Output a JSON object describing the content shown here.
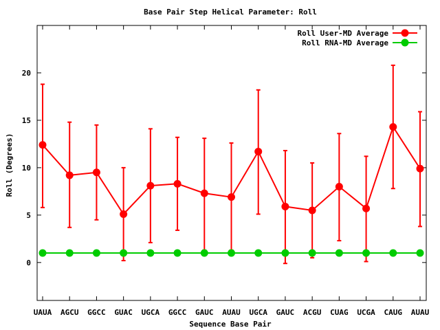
{
  "chart_data": {
    "type": "line",
    "title": "Base Pair Step Helical Parameter: Roll",
    "xlabel": "Sequence Base Pair",
    "ylabel": "Roll (Degrees)",
    "categories": [
      "UAUA",
      "AGCU",
      "GGCC",
      "GUAC",
      "UGCA",
      "GGCC",
      "GAUC",
      "AUAU",
      "UGCA",
      "GAUC",
      "ACGU",
      "CUAG",
      "UCGA",
      "CAUG",
      "AUAU"
    ],
    "ylim": [
      -4,
      25
    ],
    "yticks": [
      0,
      5,
      10,
      15,
      20
    ],
    "grid": false,
    "legend_position": "top-right",
    "series": [
      {
        "name": "Roll User-MD Average",
        "color": "#ff0000",
        "values": [
          12.4,
          9.2,
          9.5,
          5.1,
          8.1,
          8.3,
          7.3,
          6.9,
          11.7,
          5.9,
          5.5,
          8.0,
          5.7,
          14.3,
          9.9
        ],
        "error_low": [
          5.8,
          3.7,
          4.5,
          0.2,
          2.1,
          3.4,
          1.3,
          1.3,
          5.1,
          -0.1,
          0.5,
          2.3,
          0.1,
          7.8,
          3.8
        ],
        "error_high": [
          18.8,
          14.8,
          14.5,
          10.0,
          14.1,
          13.2,
          13.1,
          12.6,
          18.2,
          11.8,
          10.5,
          13.6,
          11.2,
          20.8,
          15.9
        ]
      },
      {
        "name": "Roll RNA-MD Average",
        "color": "#00cc00",
        "values": [
          1.0,
          1.0,
          1.0,
          1.0,
          1.0,
          1.0,
          1.0,
          1.0,
          1.0,
          1.0,
          1.0,
          1.0,
          1.0,
          1.0,
          1.0
        ]
      }
    ]
  }
}
